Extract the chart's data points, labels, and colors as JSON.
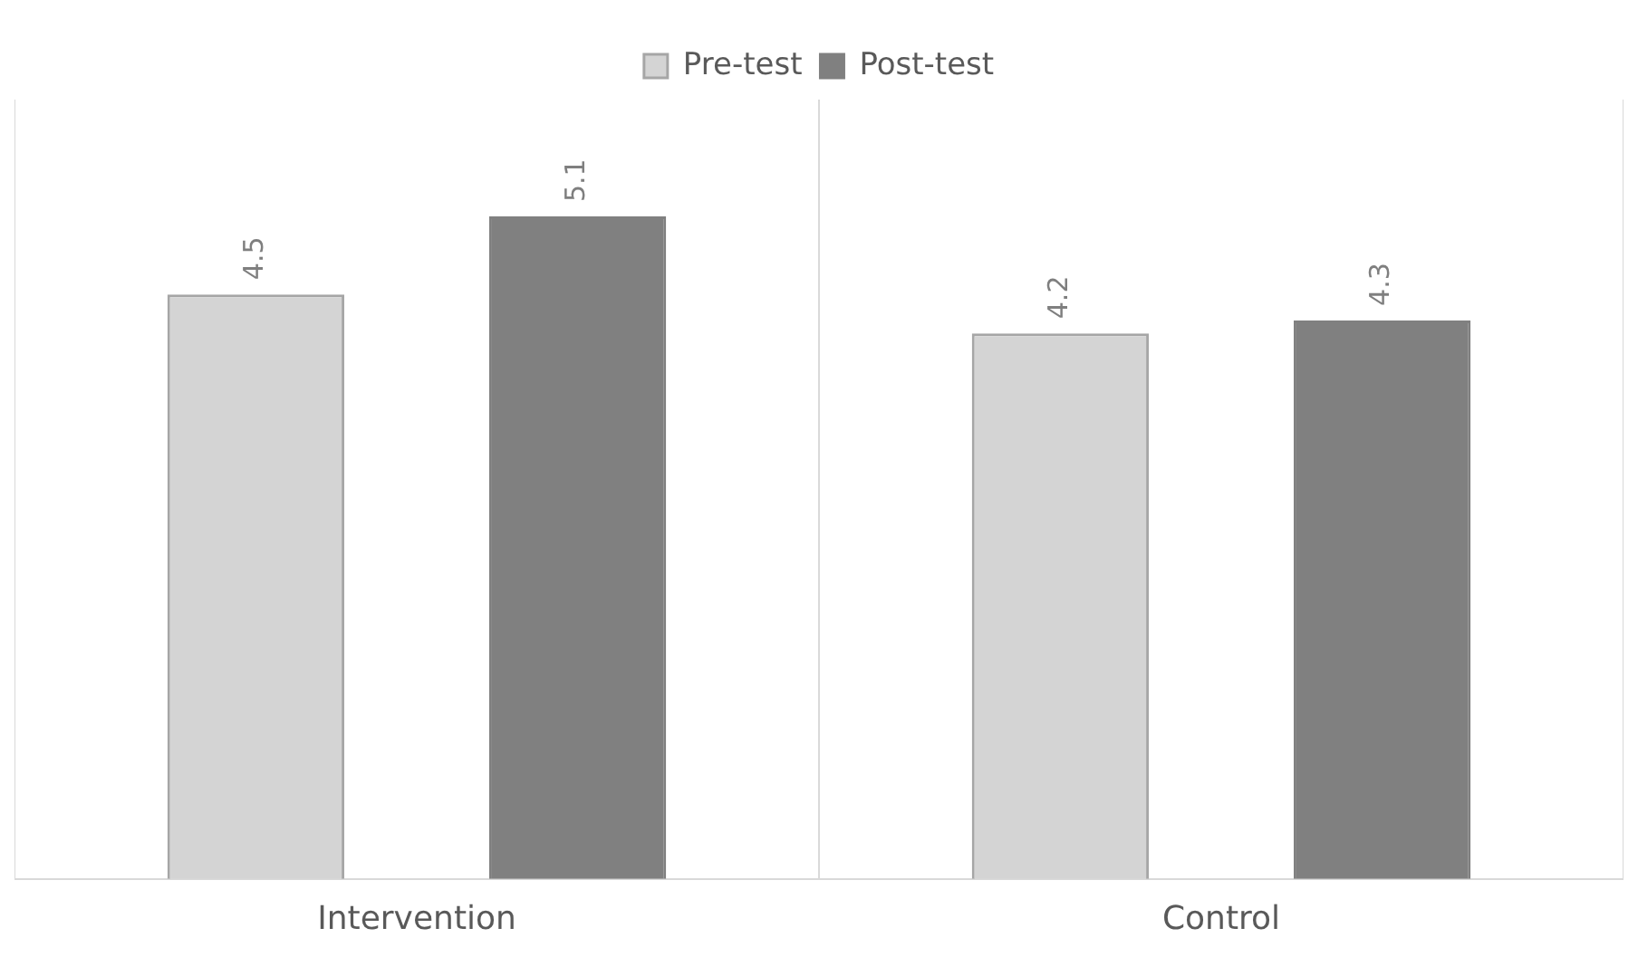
{
  "chart_data": {
    "type": "bar",
    "categories": [
      "Intervention",
      "Control"
    ],
    "series": [
      {
        "name": "Pre-test",
        "color": "#d4d4d4",
        "values": [
          4.5,
          4.2
        ]
      },
      {
        "name": "Post-test",
        "color": "#808080",
        "values": [
          5.1,
          4.3
        ]
      }
    ],
    "data_labels": true,
    "grid": "x",
    "legend": "top",
    "tick_labels": "x"
  }
}
